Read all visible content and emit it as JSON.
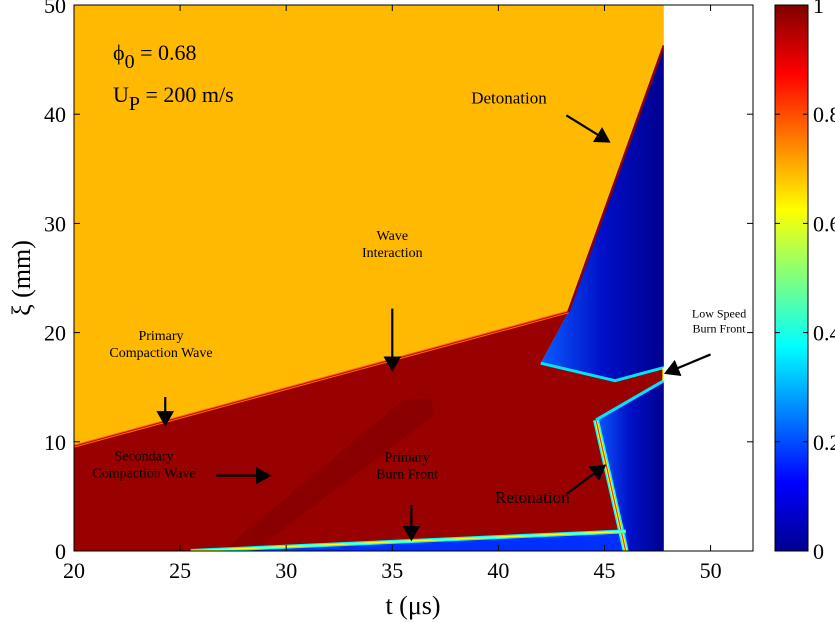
{
  "chart_data": {
    "type": "heatmap",
    "xlabel": "t (μs)",
    "ylabel": "ξ (mm)",
    "xlim": [
      20,
      52
    ],
    "ylim": [
      0,
      50
    ],
    "xticks": [
      20,
      25,
      30,
      35,
      40,
      45,
      50
    ],
    "yticks": [
      0,
      10,
      20,
      30,
      40,
      50
    ],
    "colorbar": {
      "range": [
        0,
        1
      ],
      "ticks": [
        "0",
        "0.2",
        "0.4",
        "0.6",
        "0.8",
        "1"
      ]
    },
    "parameters": [
      {
        "sym": "ϕ",
        "sub": "0",
        "rest": " = 0.68"
      },
      {
        "sym": "U",
        "sub": "P",
        "rest": " = 200 m/s"
      }
    ],
    "data_extent_t_max": 47.8,
    "regions": [
      {
        "name": "unreacted",
        "value": 0.7,
        "points": [
          [
            20,
            0
          ],
          [
            47.8,
            0
          ],
          [
            47.8,
            50
          ],
          [
            20,
            50
          ]
        ]
      },
      {
        "name": "compacted",
        "value": 1.0,
        "points": [
          [
            20,
            0
          ],
          [
            20,
            9.6
          ],
          [
            43.3,
            21.9
          ],
          [
            42,
            17.2
          ],
          [
            45.5,
            15.6
          ],
          [
            47.8,
            16.8
          ],
          [
            47.8,
            15.6
          ],
          [
            44.6,
            12
          ],
          [
            46,
            0
          ]
        ]
      },
      {
        "name": "secondary-compaction",
        "value": 0.95,
        "points": [
          [
            25.5,
            0
          ],
          [
            27,
            0
          ],
          [
            35.5,
            13.8
          ],
          [
            36.8,
            14
          ],
          [
            37,
            12.5
          ],
          [
            28.5,
            0
          ],
          [
            26.5,
            0
          ]
        ]
      },
      {
        "name": "burned-upper",
        "value": 0.02,
        "points": [
          [
            43.3,
            21.9
          ],
          [
            47.8,
            46.3
          ],
          [
            47.8,
            16.8
          ],
          [
            45.5,
            15.6
          ],
          [
            42,
            17.2
          ]
        ]
      },
      {
        "name": "burned-lower",
        "value": 0.02,
        "points": [
          [
            44.6,
            12
          ],
          [
            47.8,
            15.6
          ],
          [
            47.8,
            0
          ],
          [
            46,
            0
          ]
        ]
      },
      {
        "name": "primary-burn-strip",
        "value": 0.1,
        "points": [
          [
            25.5,
            0
          ],
          [
            46,
            1.8
          ],
          [
            46.1,
            0
          ]
        ]
      }
    ],
    "fronts": [
      {
        "name": "primary-compaction-wave",
        "points": [
          [
            20,
            9.6
          ],
          [
            43.3,
            21.9
          ]
        ]
      },
      {
        "name": "detonation-front",
        "points": [
          [
            43.3,
            21.9
          ],
          [
            47.8,
            46.3
          ]
        ]
      },
      {
        "name": "retonation-front",
        "points": [
          [
            46,
            0
          ],
          [
            44.6,
            12
          ]
        ]
      },
      {
        "name": "primary-burn-front",
        "points": [
          [
            25.5,
            0
          ],
          [
            46,
            1.8
          ]
        ]
      }
    ],
    "annotations": [
      {
        "lines": [
          "Detonation"
        ],
        "text_at": [
          40.5,
          41
        ],
        "size": "l",
        "arrow": [
          [
            43.2,
            39.9
          ],
          [
            45.2,
            37.5
          ]
        ]
      },
      {
        "lines": [
          "Wave",
          "Interaction"
        ],
        "text_at": [
          35,
          28.5
        ],
        "size": "s",
        "arrow": [
          [
            35,
            22.2
          ],
          [
            35,
            16.6
          ]
        ]
      },
      {
        "lines": [
          "Primary",
          "Compaction Wave"
        ],
        "text_at": [
          24.1,
          19.3
        ],
        "size": "s",
        "arrow": [
          [
            24.3,
            14.1
          ],
          [
            24.3,
            11.6
          ]
        ]
      },
      {
        "lines": [
          "Secondary",
          "Compaction Wave"
        ],
        "text_at": [
          23.3,
          8.3
        ],
        "size": "s",
        "arrow": [
          [
            26.7,
            6.9
          ],
          [
            29.2,
            6.9
          ]
        ]
      },
      {
        "lines": [
          "Primary",
          "Burn Front"
        ],
        "text_at": [
          35.7,
          8.2
        ],
        "size": "s",
        "arrow": [
          [
            35.9,
            4.2
          ],
          [
            35.9,
            1.1
          ]
        ]
      },
      {
        "lines": [
          "Retonation"
        ],
        "text_at": [
          41.6,
          4.4
        ],
        "size": "l",
        "arrow": [
          [
            43.2,
            5.2
          ],
          [
            45,
            7.8
          ]
        ]
      },
      {
        "lines": [
          "Low Speed",
          "Burn Front"
        ],
        "text_at": [
          50.4,
          21.4
        ],
        "size": "xs",
        "arrow": [
          [
            50,
            18
          ],
          [
            47.9,
            16.3
          ]
        ]
      }
    ]
  }
}
